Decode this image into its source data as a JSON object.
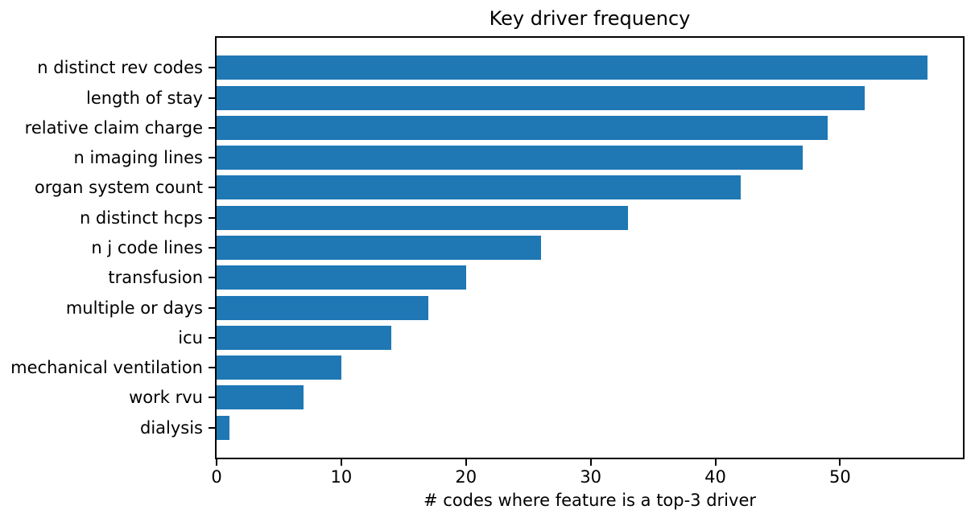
{
  "figure": {
    "background_color": "#ffffff",
    "text_color": "#000000"
  },
  "chart_data": {
    "type": "bar",
    "orientation": "horizontal",
    "title": "Key driver frequency",
    "xlabel": "# codes where feature is a top-3 driver",
    "ylabel": "",
    "categories": [
      "n distinct rev codes",
      "length of stay",
      "relative claim charge",
      "n imaging lines",
      "organ system count",
      "n distinct hcps",
      "n j code lines",
      "transfusion",
      "multiple or days",
      "icu",
      "mechanical ventilation",
      "work rvu",
      "dialysis"
    ],
    "values": [
      57,
      52,
      49,
      47,
      42,
      33,
      26,
      20,
      17,
      14,
      10,
      7,
      1
    ],
    "xticks": [
      0,
      10,
      20,
      30,
      40,
      50
    ],
    "xlim": [
      0,
      59.85
    ],
    "bar_color": "#1f77b4",
    "axis_color": "#000000",
    "grid": false,
    "legend": null
  }
}
